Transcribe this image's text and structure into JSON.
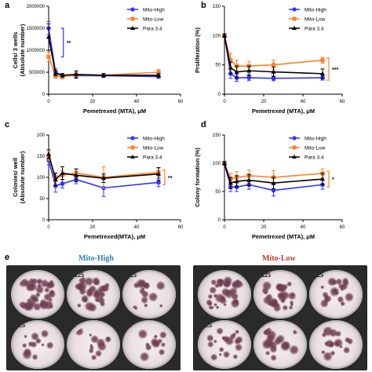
{
  "chart_data": [
    {
      "panel": "a",
      "type": "line",
      "xlabel": "Pemetrexed (MTA), μM",
      "ylabel": "Cells/ 3 wells (Absolute number)",
      "xlim": [
        0,
        60
      ],
      "ylim": [
        0,
        2000000
      ],
      "xticks": [
        "0",
        "20",
        "40",
        "60"
      ],
      "yticks": [
        "0",
        "500000",
        "1000000",
        "1500000",
        "2000000"
      ],
      "legend": "top-right",
      "significance": "**",
      "series": [
        {
          "name": "Mito-High",
          "color": "#3333ff",
          "marker": "circle",
          "x": [
            0,
            3.125,
            6.25,
            12.5,
            25,
            50
          ],
          "y": [
            1500000,
            500000,
            420000,
            420000,
            420000,
            400000
          ],
          "err": [
            150000,
            80000,
            40000,
            60000,
            40000,
            40000
          ]
        },
        {
          "name": "Mito-Low",
          "color": "#ff7f27",
          "marker": "square",
          "x": [
            0,
            3.125,
            6.25,
            12.5,
            25,
            50
          ],
          "y": [
            850000,
            420000,
            400000,
            440000,
            430000,
            500000
          ],
          "err": [
            100000,
            60000,
            50000,
            60000,
            40000,
            60000
          ]
        },
        {
          "name": "Para 3.4",
          "color": "#000000",
          "marker": "triangle",
          "x": [
            0,
            3.125,
            6.25,
            12.5,
            25,
            50
          ],
          "y": [
            1300000,
            480000,
            430000,
            450000,
            430000,
            430000
          ],
          "err": [
            300000,
            60000,
            40000,
            80000,
            40000,
            40000
          ]
        }
      ]
    },
    {
      "panel": "b",
      "type": "line",
      "xlabel": "Pemetrexed (MTA), μM",
      "ylabel": "Proliferation (%)",
      "xlim": [
        0,
        60
      ],
      "ylim": [
        0,
        150
      ],
      "xticks": [
        "0",
        "20",
        "40",
        "60"
      ],
      "yticks": [
        "0",
        "50",
        "100",
        "150"
      ],
      "legend": "top-right",
      "significance": "***",
      "series": [
        {
          "name": "Mito-High",
          "color": "#3333ff",
          "marker": "circle",
          "x": [
            0,
            3.125,
            6.25,
            12.5,
            25,
            50
          ],
          "y": [
            100,
            35,
            28,
            28,
            27,
            28
          ],
          "err": [
            3,
            8,
            6,
            5,
            4,
            4
          ]
        },
        {
          "name": "Mito-Low",
          "color": "#ff7f27",
          "marker": "square",
          "x": [
            0,
            3.125,
            6.25,
            12.5,
            25,
            50
          ],
          "y": [
            100,
            58,
            48,
            48,
            50,
            58
          ],
          "err": [
            3,
            12,
            10,
            8,
            8,
            5
          ]
        },
        {
          "name": "Para 3.4",
          "color": "#000000",
          "marker": "triangle",
          "x": [
            0,
            3.125,
            6.25,
            12.5,
            25,
            50
          ],
          "y": [
            100,
            45,
            38,
            40,
            38,
            35
          ],
          "err": [
            3,
            10,
            10,
            8,
            8,
            8
          ]
        }
      ]
    },
    {
      "panel": "c",
      "type": "line",
      "xlabel": "Pemetrexed(MTA), μM",
      "ylabel": "Colonies/ well (Absolute number)",
      "xlim": [
        0,
        60
      ],
      "ylim": [
        0,
        200
      ],
      "xticks": [
        "0",
        "20",
        "40",
        "60"
      ],
      "yticks": [
        "0",
        "50",
        "100",
        "150",
        "200"
      ],
      "legend": "top-right",
      "significance": "**",
      "series": [
        {
          "name": "Mito-High",
          "color": "#3333ff",
          "marker": "circle",
          "x": [
            0,
            3.125,
            6.25,
            12.5,
            25,
            50
          ],
          "y": [
            140,
            80,
            85,
            95,
            75,
            88
          ],
          "err": [
            10,
            15,
            10,
            10,
            20,
            10
          ]
        },
        {
          "name": "Mito-Low",
          "color": "#ff7f27",
          "marker": "square",
          "x": [
            0,
            3.125,
            6.25,
            12.5,
            25,
            50
          ],
          "y": [
            150,
            100,
            105,
            110,
            100,
            112
          ],
          "err": [
            10,
            10,
            10,
            10,
            25,
            10
          ]
        },
        {
          "name": "Para 3.4",
          "color": "#000000",
          "marker": "triangle",
          "x": [
            0,
            3.125,
            6.25,
            12.5,
            25,
            50
          ],
          "y": [
            155,
            95,
            110,
            105,
            98,
            108
          ],
          "err": [
            10,
            15,
            15,
            15,
            10,
            15
          ]
        }
      ]
    },
    {
      "panel": "d",
      "type": "line",
      "xlabel": "Pemetrexed (MTA), μM",
      "ylabel": "Colony formation (%)",
      "xlim": [
        0,
        60
      ],
      "ylim": [
        0,
        150
      ],
      "xticks": [
        "0",
        "20",
        "40",
        "60"
      ],
      "yticks": [
        "0",
        "50",
        "100",
        "150"
      ],
      "legend": "top-right",
      "significance": "*",
      "series": [
        {
          "name": "Mito-High",
          "color": "#3333ff",
          "marker": "circle",
          "x": [
            0,
            3.125,
            6.25,
            12.5,
            25,
            50
          ],
          "y": [
            100,
            58,
            58,
            62,
            52,
            62
          ],
          "err": [
            3,
            8,
            8,
            8,
            10,
            8
          ]
        },
        {
          "name": "Mito-Low",
          "color": "#ff7f27",
          "marker": "square",
          "x": [
            0,
            3.125,
            6.25,
            12.5,
            25,
            50
          ],
          "y": [
            100,
            72,
            75,
            78,
            75,
            82
          ],
          "err": [
            3,
            10,
            10,
            10,
            12,
            8
          ]
        },
        {
          "name": "Para 3.4",
          "color": "#000000",
          "marker": "triangle",
          "x": [
            0,
            3.125,
            6.25,
            12.5,
            25,
            50
          ],
          "y": [
            100,
            65,
            68,
            70,
            65,
            72
          ],
          "err": [
            3,
            10,
            10,
            10,
            10,
            10
          ]
        }
      ]
    }
  ],
  "panel_e": {
    "letter": "e",
    "groups": [
      {
        "title": "Mito-High",
        "title_color": "#2a7fc1",
        "labels": [
          "0",
          "3.125",
          "6.25",
          "12.5",
          "25",
          "50"
        ],
        "density": [
          0.9,
          0.7,
          0.35,
          0.3,
          0.3,
          0.3
        ]
      },
      {
        "title": "Mito-Low",
        "title_color": "#c0392b",
        "labels": [
          "0",
          "3.125",
          "6.25",
          "12.5",
          "25",
          "50"
        ],
        "density": [
          0.9,
          0.75,
          0.5,
          0.45,
          0.4,
          0.45
        ]
      }
    ]
  }
}
